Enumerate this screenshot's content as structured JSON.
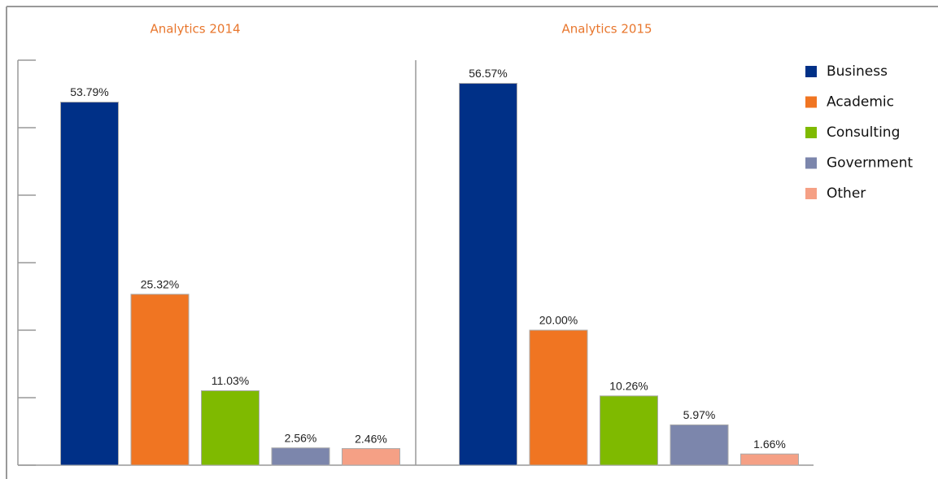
{
  "chart_data": [
    {
      "type": "bar",
      "title": "Analytics 2014",
      "categories": [
        "Business",
        "Academic",
        "Consulting",
        "Government",
        "Other"
      ],
      "values": [
        53.79,
        25.32,
        11.03,
        2.56,
        2.46
      ],
      "value_labels": [
        "53.79%",
        "25.32%",
        "11.03%",
        "2.56%",
        "2.46%"
      ],
      "colors": [
        "#003087",
        "#f07522",
        "#7fba00",
        "#7c86ac",
        "#f5a085"
      ],
      "ylim": [
        0,
        60
      ],
      "yticks": [
        0,
        10,
        20,
        30,
        40,
        50,
        60
      ]
    },
    {
      "type": "bar",
      "title": "Analytics 2015",
      "categories": [
        "Business",
        "Academic",
        "Consulting",
        "Government",
        "Other"
      ],
      "values": [
        56.57,
        20.0,
        10.26,
        5.97,
        1.66
      ],
      "value_labels": [
        "56.57%",
        "20.00%",
        "10.26%",
        "5.97%",
        "1.66%"
      ],
      "colors": [
        "#003087",
        "#f07522",
        "#7fba00",
        "#7c86ac",
        "#f5a085"
      ],
      "ylim": [
        0,
        60
      ]
    }
  ]
}
